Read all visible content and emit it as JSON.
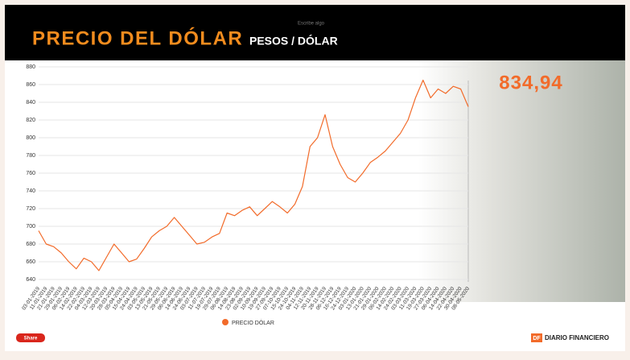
{
  "chart_data": {
    "type": "line",
    "title": "PRECIO DEL DÓLAR",
    "subtitle": "PESOS / DÓLAR",
    "annotation": "Escribe algo",
    "current_value_label": "834,94",
    "categories": [
      "03-01-2019",
      "11-01-2019",
      "21-01-2019",
      "29-01-2019",
      "06-02-2019",
      "14-02-2019",
      "22-02-2019",
      "04-03-2019",
      "12-03-2019",
      "20-03-2019",
      "28-03-2019",
      "05-04-2019",
      "15-04-2019",
      "24-04-2019",
      "03-05-2019",
      "13-05-2019",
      "21-05-2019",
      "29-05-2019",
      "06-06-2019",
      "14-06-2019",
      "24-06-2019",
      "03-07-2019",
      "11-07-2019",
      "19-07-2019",
      "29-07-2019",
      "06-08-2019",
      "14-08-2019",
      "23-08-2019",
      "02-09-2019",
      "10-09-2019",
      "19-09-2019",
      "27-09-2019",
      "07-10-2019",
      "15-10-2019",
      "24-10-2019",
      "04-11-2019",
      "12-11-2019",
      "20-11-2019",
      "28-11-2019",
      "06-12-2019",
      "16-12-2019",
      "24-12-2019",
      "03-01-2020",
      "13-01-2020",
      "21-01-2020",
      "29-01-2020",
      "06-02-2020",
      "14-02-2020",
      "24-02-2020",
      "03-03-2020",
      "11-03-2020",
      "19-03-2020",
      "27-03-2020",
      "06-04-2020",
      "14-04-2020",
      "22-04-2020",
      "30-04-2020",
      "08-05-2020"
    ],
    "series": [
      {
        "name": "PRECIO DÓLAR",
        "color": "#f26b2a",
        "values": [
          695,
          680,
          677,
          670,
          660,
          652,
          664,
          660,
          650,
          665,
          680,
          670,
          660,
          663,
          675,
          688,
          695,
          700,
          710,
          700,
          690,
          680,
          682,
          688,
          692,
          715,
          712,
          718,
          722,
          712,
          720,
          728,
          722,
          715,
          725,
          745,
          790,
          800,
          826,
          790,
          770,
          755,
          750,
          760,
          772,
          778,
          785,
          795,
          805,
          820,
          845,
          865,
          845,
          855,
          850,
          858,
          855,
          835
        ]
      }
    ],
    "ylim": [
      640,
      880
    ],
    "yticks": [
      640,
      660,
      680,
      700,
      720,
      740,
      760,
      780,
      800,
      820,
      840,
      860,
      880
    ],
    "grid": true
  },
  "footer": {
    "share": "Share",
    "brand_mark": "DF",
    "brand": "DIARIO FINANCIERO"
  }
}
